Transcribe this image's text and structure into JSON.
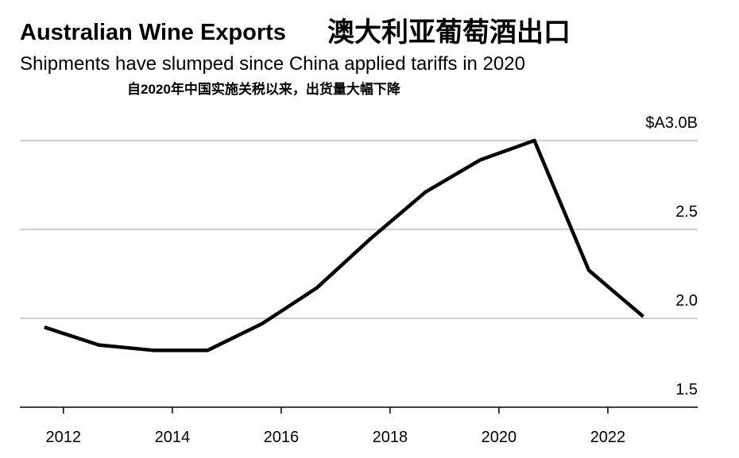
{
  "chart_data": {
    "type": "line",
    "title": "Australian Wine Exports",
    "title_zh": "澳大利亚葡萄酒出口",
    "subtitle": "Shipments have slumped since China applied tariffs in 2020",
    "subtitle_zh": "自2020年中国实施关税以来，出货量大幅下降",
    "x": [
      2011.65,
      2012.65,
      2013.65,
      2014.65,
      2015.65,
      2016.65,
      2017.65,
      2018.65,
      2019.65,
      2020.65,
      2021.65,
      2022.65
    ],
    "series": [
      {
        "color": "#000000",
        "values": [
          1.95,
          1.85,
          1.82,
          1.82,
          1.97,
          2.17,
          2.45,
          2.71,
          2.89,
          3.0,
          2.27,
          2.01
        ]
      }
    ],
    "xlim": [
      2011.2,
      2023.65
    ],
    "xticks": [
      2012,
      2014,
      2016,
      2018,
      2020,
      2022
    ],
    "ylim": [
      1.5,
      3.0
    ],
    "yticks": [
      1.5,
      {
        "value": 2.0,
        "label": "2.0"
      },
      2.5,
      {
        "value": 3.0,
        "label": "$A3.0B"
      }
    ],
    "grid": true
  }
}
